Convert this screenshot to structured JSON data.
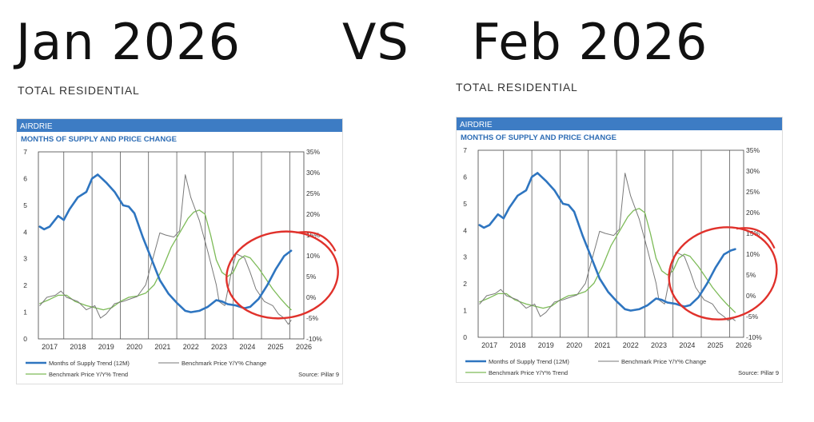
{
  "headline": {
    "left": "Jan 2026",
    "vs": "VS",
    "right": "Feb 2026"
  },
  "panels": [
    {
      "id": "jan",
      "subtitle": "TOTAL RESIDENTIAL",
      "region": "AIRDRIE",
      "chart_title": "MONTHS OF SUPPLY AND PRICE CHANGE",
      "source": "Source: Pillar 9"
    },
    {
      "id": "feb",
      "subtitle": "TOTAL RESIDENTIAL",
      "region": "AIRDRIE",
      "chart_title": "MONTHS OF SUPPLY AND PRICE CHANGE",
      "source": "Source: Pillar 9"
    }
  ],
  "colors": {
    "header_bar": "#3d7cc4",
    "title_blue": "#2e6db5",
    "supply_line": "#2e75c0",
    "benchmark_change": "#7a7a7a",
    "benchmark_trend": "#7dbb58",
    "circle": "#e0312b"
  },
  "chart_data": [
    {
      "type": "line",
      "title": "MONTHS OF SUPPLY AND PRICE CHANGE",
      "x_ticks": [
        "2017",
        "2018",
        "2019",
        "2020",
        "2021",
        "2022",
        "2023",
        "2024",
        "2025",
        "2026"
      ],
      "xlim": [
        2016.6,
        2026.0
      ],
      "y_left_ticks": [
        "0",
        "1",
        "2",
        "3",
        "4",
        "5",
        "6",
        "7"
      ],
      "y_left_range": [
        0,
        7
      ],
      "y_right_ticks": [
        "-10%",
        "-5%",
        "0%",
        "5%",
        "10%",
        "15%",
        "20%",
        "25%",
        "30%",
        "35%"
      ],
      "y_right_range": [
        -10,
        35
      ],
      "grid": "vertical",
      "legend": "bottom",
      "annotation": "red circle around 2023.6–2025.9",
      "series": [
        {
          "name": "Months of Supply Trend (12M)",
          "axis": "left",
          "points": [
            [
              2016.65,
              4.2
            ],
            [
              2016.8,
              4.1
            ],
            [
              2017.0,
              4.2
            ],
            [
              2017.3,
              4.6
            ],
            [
              2017.5,
              4.45
            ],
            [
              2017.7,
              4.85
            ],
            [
              2018.0,
              5.3
            ],
            [
              2018.3,
              5.5
            ],
            [
              2018.5,
              6.0
            ],
            [
              2018.7,
              6.15
            ],
            [
              2019.0,
              5.85
            ],
            [
              2019.3,
              5.5
            ],
            [
              2019.6,
              5.0
            ],
            [
              2019.8,
              4.95
            ],
            [
              2020.0,
              4.7
            ],
            [
              2020.3,
              3.8
            ],
            [
              2020.6,
              3.0
            ],
            [
              2020.9,
              2.2
            ],
            [
              2021.2,
              1.7
            ],
            [
              2021.5,
              1.35
            ],
            [
              2021.8,
              1.05
            ],
            [
              2022.0,
              1.0
            ],
            [
              2022.3,
              1.05
            ],
            [
              2022.6,
              1.2
            ],
            [
              2022.9,
              1.45
            ],
            [
              2023.1,
              1.4
            ],
            [
              2023.3,
              1.3
            ],
            [
              2023.6,
              1.25
            ],
            [
              2023.9,
              1.15
            ],
            [
              2024.1,
              1.2
            ],
            [
              2024.4,
              1.5
            ],
            [
              2024.7,
              2.0
            ],
            [
              2025.0,
              2.6
            ],
            [
              2025.3,
              3.1
            ],
            [
              2025.55,
              3.3
            ]
          ]
        },
        {
          "name": "Benchmark Price Y/Y% Change",
          "axis": "right",
          "points": [
            [
              2016.65,
              -2
            ],
            [
              2016.9,
              0
            ],
            [
              2017.2,
              0.5
            ],
            [
              2017.4,
              1.5
            ],
            [
              2017.6,
              0
            ],
            [
              2017.8,
              -0.5
            ],
            [
              2018.0,
              -1
            ],
            [
              2018.3,
              -3
            ],
            [
              2018.6,
              -2
            ],
            [
              2018.8,
              -5
            ],
            [
              2019.0,
              -4
            ],
            [
              2019.3,
              -1.5
            ],
            [
              2019.6,
              -1
            ],
            [
              2019.8,
              -0.5
            ],
            [
              2020.1,
              0.2
            ],
            [
              2020.4,
              3
            ],
            [
              2020.6,
              8
            ],
            [
              2020.9,
              15.5
            ],
            [
              2021.1,
              15
            ],
            [
              2021.4,
              14.5
            ],
            [
              2021.6,
              16
            ],
            [
              2021.8,
              29.5
            ],
            [
              2022.0,
              24
            ],
            [
              2022.3,
              18.5
            ],
            [
              2022.6,
              11
            ],
            [
              2022.9,
              3
            ],
            [
              2023.0,
              -1
            ],
            [
              2023.2,
              -2
            ],
            [
              2023.4,
              5
            ],
            [
              2023.6,
              10.5
            ],
            [
              2023.9,
              9.5
            ],
            [
              2024.1,
              6
            ],
            [
              2024.3,
              2
            ],
            [
              2024.6,
              -1
            ],
            [
              2024.9,
              -2
            ],
            [
              2025.1,
              -4
            ],
            [
              2025.3,
              -5
            ],
            [
              2025.45,
              -6.5
            ],
            [
              2025.55,
              -5.5
            ]
          ]
        },
        {
          "name": "Benchmark Price Y/Y% Trend",
          "axis": "right",
          "points": [
            [
              2016.65,
              -1.5
            ],
            [
              2017.0,
              -0.5
            ],
            [
              2017.3,
              0.5
            ],
            [
              2017.6,
              0.5
            ],
            [
              2017.9,
              -1
            ],
            [
              2018.3,
              -2
            ],
            [
              2018.6,
              -2.5
            ],
            [
              2018.9,
              -3
            ],
            [
              2019.2,
              -2.5
            ],
            [
              2019.5,
              -1
            ],
            [
              2019.8,
              0
            ],
            [
              2020.1,
              0.3
            ],
            [
              2020.4,
              1
            ],
            [
              2020.7,
              3
            ],
            [
              2021.0,
              7
            ],
            [
              2021.3,
              12
            ],
            [
              2021.6,
              15.5
            ],
            [
              2021.9,
              19
            ],
            [
              2022.1,
              20.5
            ],
            [
              2022.3,
              21
            ],
            [
              2022.5,
              20
            ],
            [
              2022.7,
              15
            ],
            [
              2022.9,
              9
            ],
            [
              2023.1,
              6
            ],
            [
              2023.3,
              5
            ],
            [
              2023.5,
              6
            ],
            [
              2023.7,
              9
            ],
            [
              2023.9,
              10
            ],
            [
              2024.1,
              9.5
            ],
            [
              2024.4,
              7
            ],
            [
              2024.7,
              4
            ],
            [
              2024.9,
              2
            ],
            [
              2025.2,
              -0.5
            ],
            [
              2025.4,
              -2
            ],
            [
              2025.55,
              -3
            ]
          ]
        }
      ]
    },
    {
      "type": "line",
      "title": "MONTHS OF SUPPLY AND PRICE CHANGE",
      "x_ticks": [
        "2017",
        "2018",
        "2019",
        "2020",
        "2021",
        "2022",
        "2023",
        "2024",
        "2025",
        "2026"
      ],
      "xlim": [
        2016.6,
        2026.0
      ],
      "y_left_ticks": [
        "0",
        "1",
        "2",
        "3",
        "4",
        "5",
        "6",
        "7"
      ],
      "y_left_range": [
        0,
        7
      ],
      "y_right_ticks": [
        "-10%",
        "-5%",
        "0%",
        "5%",
        "10%",
        "15%",
        "20%",
        "25%",
        "30%",
        "35%"
      ],
      "y_right_range": [
        -10,
        35
      ],
      "grid": "vertical",
      "legend": "bottom",
      "annotation": "red circle around 2023.5–2025.9",
      "series": [
        {
          "name": "Months of Supply Trend (12M)",
          "axis": "left",
          "points": [
            [
              2016.65,
              4.2
            ],
            [
              2016.8,
              4.1
            ],
            [
              2017.0,
              4.2
            ],
            [
              2017.3,
              4.6
            ],
            [
              2017.5,
              4.45
            ],
            [
              2017.7,
              4.85
            ],
            [
              2018.0,
              5.3
            ],
            [
              2018.3,
              5.5
            ],
            [
              2018.5,
              6.0
            ],
            [
              2018.7,
              6.15
            ],
            [
              2019.0,
              5.85
            ],
            [
              2019.3,
              5.5
            ],
            [
              2019.6,
              5.0
            ],
            [
              2019.8,
              4.95
            ],
            [
              2020.0,
              4.7
            ],
            [
              2020.3,
              3.8
            ],
            [
              2020.6,
              3.0
            ],
            [
              2020.9,
              2.2
            ],
            [
              2021.2,
              1.7
            ],
            [
              2021.5,
              1.35
            ],
            [
              2021.8,
              1.05
            ],
            [
              2022.0,
              1.0
            ],
            [
              2022.3,
              1.05
            ],
            [
              2022.6,
              1.2
            ],
            [
              2022.9,
              1.45
            ],
            [
              2023.1,
              1.4
            ],
            [
              2023.3,
              1.3
            ],
            [
              2023.6,
              1.25
            ],
            [
              2023.9,
              1.15
            ],
            [
              2024.1,
              1.2
            ],
            [
              2024.4,
              1.5
            ],
            [
              2024.7,
              2.0
            ],
            [
              2025.0,
              2.6
            ],
            [
              2025.3,
              3.1
            ],
            [
              2025.55,
              3.25
            ],
            [
              2025.7,
              3.3
            ]
          ]
        },
        {
          "name": "Benchmark Price Y/Y% Change",
          "axis": "right",
          "points": [
            [
              2016.65,
              -2
            ],
            [
              2016.9,
              0
            ],
            [
              2017.2,
              0.5
            ],
            [
              2017.4,
              1.5
            ],
            [
              2017.6,
              0
            ],
            [
              2017.8,
              -0.5
            ],
            [
              2018.0,
              -1
            ],
            [
              2018.3,
              -3
            ],
            [
              2018.6,
              -2
            ],
            [
              2018.8,
              -5
            ],
            [
              2019.0,
              -4
            ],
            [
              2019.3,
              -1.5
            ],
            [
              2019.6,
              -1
            ],
            [
              2019.8,
              -0.5
            ],
            [
              2020.1,
              0.2
            ],
            [
              2020.4,
              3
            ],
            [
              2020.6,
              8
            ],
            [
              2020.9,
              15.5
            ],
            [
              2021.1,
              15
            ],
            [
              2021.4,
              14.5
            ],
            [
              2021.6,
              16
            ],
            [
              2021.8,
              29.5
            ],
            [
              2022.0,
              24
            ],
            [
              2022.3,
              18.5
            ],
            [
              2022.6,
              11
            ],
            [
              2022.9,
              3
            ],
            [
              2023.0,
              -1
            ],
            [
              2023.2,
              -2
            ],
            [
              2023.4,
              5
            ],
            [
              2023.6,
              10.5
            ],
            [
              2023.9,
              9.5
            ],
            [
              2024.1,
              6
            ],
            [
              2024.3,
              2
            ],
            [
              2024.6,
              -1
            ],
            [
              2024.9,
              -2
            ],
            [
              2025.1,
              -4
            ],
            [
              2025.3,
              -5
            ],
            [
              2025.45,
              -6
            ],
            [
              2025.6,
              -5.5
            ],
            [
              2025.7,
              -6
            ]
          ]
        },
        {
          "name": "Benchmark Price Y/Y% Trend",
          "axis": "right",
          "points": [
            [
              2016.65,
              -1.5
            ],
            [
              2017.0,
              -0.5
            ],
            [
              2017.3,
              0.5
            ],
            [
              2017.6,
              0.5
            ],
            [
              2017.9,
              -1
            ],
            [
              2018.3,
              -2
            ],
            [
              2018.6,
              -2.5
            ],
            [
              2018.9,
              -3
            ],
            [
              2019.2,
              -2.5
            ],
            [
              2019.5,
              -1
            ],
            [
              2019.8,
              0
            ],
            [
              2020.1,
              0.3
            ],
            [
              2020.4,
              1
            ],
            [
              2020.7,
              3
            ],
            [
              2021.0,
              7
            ],
            [
              2021.3,
              12
            ],
            [
              2021.6,
              15.5
            ],
            [
              2021.9,
              19
            ],
            [
              2022.1,
              20.5
            ],
            [
              2022.3,
              21
            ],
            [
              2022.5,
              20
            ],
            [
              2022.7,
              15
            ],
            [
              2022.9,
              9
            ],
            [
              2023.1,
              6
            ],
            [
              2023.3,
              5
            ],
            [
              2023.5,
              6
            ],
            [
              2023.7,
              9
            ],
            [
              2023.9,
              10
            ],
            [
              2024.1,
              9.5
            ],
            [
              2024.4,
              7
            ],
            [
              2024.7,
              4
            ],
            [
              2024.9,
              2
            ],
            [
              2025.2,
              -0.5
            ],
            [
              2025.4,
              -2
            ],
            [
              2025.55,
              -3
            ],
            [
              2025.7,
              -4
            ]
          ]
        }
      ]
    }
  ]
}
